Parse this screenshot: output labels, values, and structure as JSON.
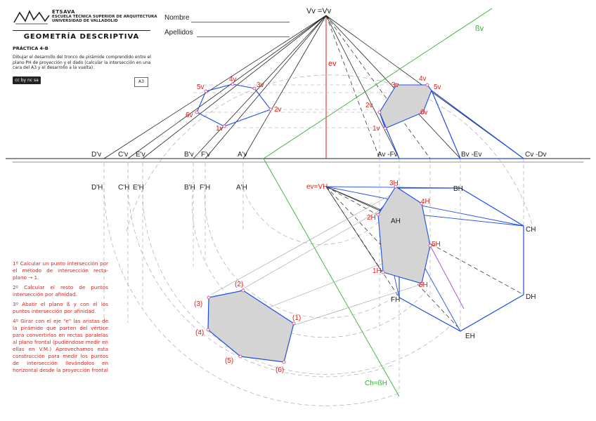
{
  "header": {
    "school_short": "ETSAVA",
    "school_line1": "ESCUELA TÉCNICA SUPERIOR DE ARQUITECTURA",
    "school_line2": "UNIVERSIDAD DE VALLADOLID",
    "course": "GEOMETRÍA DESCRIPTIVA",
    "practice": "PRÁCTICA 4-B",
    "description": "Dibujar el desarrollo del tronco de pirámide comprendido entre el plano PH de proyección y el dado (calcular la intersección en una cara del A3 y el desarrollo a la vuelta).",
    "license": "cc by nc sa",
    "paper": "A3"
  },
  "form": {
    "name_label": "Nombre",
    "surname_label": "Apellidos"
  },
  "steps": [
    "1º Calcular un punto intersección por el método de intersección recta-plano → 1.",
    "2º Calcular el resto de puntos intersección por afinidad.",
    "3º Abatir el plano ß y con él los puntos intersección por afinidad.",
    "4º Girar con el eje \"e\" las aristas de la pirámide que parten del vértice para convertirlas en rectas paralelas al plano frontal (pudiéndose medir en ellas en V.M.) Aprovechamos esta construcción para medir los puntos de intersección llevándolos en horizontal desde la proyección frontal"
  ],
  "labels": {
    "apex_front": "Vv =Vv",
    "axis_front": "ev",
    "plane_beta_front": "ßv",
    "apex_top": "ev=VH",
    "trace_top": "Ch=ßH",
    "front_ground": [
      "D'v",
      "C'v",
      "E'v",
      "B'v",
      "F'v",
      "A'v",
      "Av -Fv",
      "Bv -Ev",
      "Cv -Dv"
    ],
    "top_rotated": [
      "D'H",
      "C'H",
      "E'H",
      "B'H",
      "F'H",
      "A'H"
    ],
    "top_base": [
      "AH",
      "BH",
      "CH",
      "DH",
      "EH",
      "FH"
    ],
    "left_poly_front": [
      "1v",
      "2v",
      "3v",
      "4v",
      "5v",
      "6v"
    ],
    "right_poly_front": [
      "1v",
      "2v",
      "3v",
      "4v",
      "5v",
      "6v"
    ],
    "section_top": [
      "1H",
      "2H",
      "3H",
      "4H",
      "5H",
      "6H"
    ],
    "true_shape": [
      "(1)",
      "(2)",
      "(3)",
      "(4)",
      "(5)",
      "(6)"
    ]
  },
  "colors": {
    "construction": "#222222",
    "visible_edges": "#1f4fe0",
    "annotation_red": "#e0201a",
    "plane_green": "#32b032",
    "hidden_grey": "#9a9a9a",
    "section_fill": "#d4d4d4",
    "purple": "#a050d0"
  }
}
